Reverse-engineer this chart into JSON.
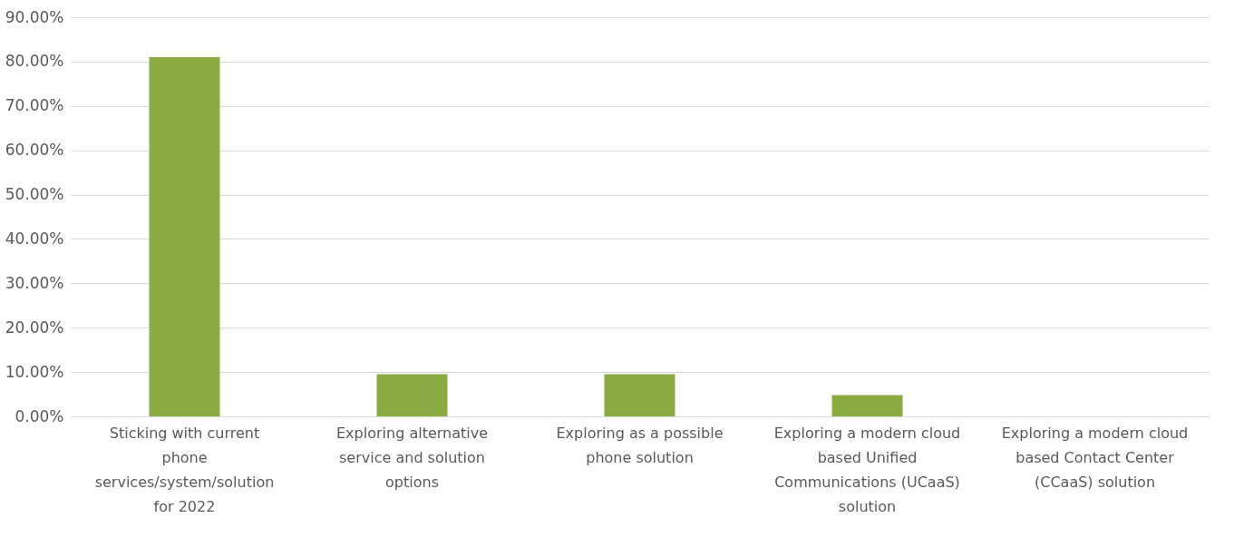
{
  "chart_data": {
    "type": "bar",
    "categories": [
      "Sticking with current phone services/system/solution for 2022",
      "Exploring alternative service and solution options",
      "Exploring as a possible phone solution",
      "Exploring a modern cloud based Unified Communications (UCaaS) solution",
      "Exploring a modern cloud based Contact Center (CCaaS) solution"
    ],
    "values": [
      81,
      9.5,
      9.5,
      4.8,
      0
    ],
    "color": "#8aab42",
    "ylim": [
      0,
      90
    ],
    "yticks": [
      {
        "value": 0,
        "label": "0.00%"
      },
      {
        "value": 10,
        "label": "10.00%"
      },
      {
        "value": 20,
        "label": "20.00%"
      },
      {
        "value": 30,
        "label": "30.00%"
      },
      {
        "value": 40,
        "label": "40.00%"
      },
      {
        "value": 50,
        "label": "50.00%"
      },
      {
        "value": 60,
        "label": "60.00%"
      },
      {
        "value": 70,
        "label": "70.00%"
      },
      {
        "value": 80,
        "label": "80.00%"
      },
      {
        "value": 90,
        "label": "90.00%"
      }
    ],
    "grid": "y"
  }
}
